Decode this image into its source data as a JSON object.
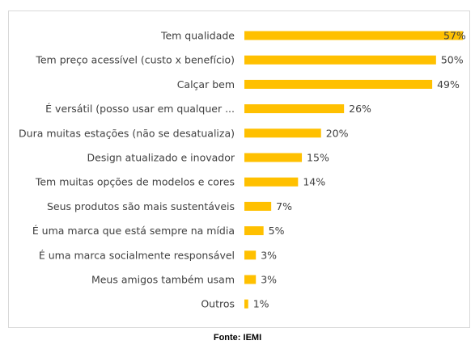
{
  "chart_data": {
    "type": "bar",
    "orientation": "horizontal",
    "categories": [
      "Tem qualidade",
      "Tem preço acessível (custo x benefício)",
      "Calçar bem",
      "É versátil (posso usar em qualquer ...",
      "Dura muitas estações (não se desatualiza)",
      "Design atualizado e inovador",
      "Tem muitas opções de modelos e cores",
      "Seus produtos são mais sustentáveis",
      "É uma marca que está sempre na mídia",
      "É uma marca socialmente responsável",
      "Meus amigos também usam",
      "Outros"
    ],
    "values": [
      57,
      50,
      49,
      26,
      20,
      15,
      14,
      7,
      5,
      3,
      3,
      1
    ],
    "value_labels": [
      "57%",
      "50%",
      "49%",
      "26%",
      "20%",
      "15%",
      "14%",
      "7%",
      "5%",
      "3%",
      "3%",
      "1%"
    ],
    "xlim": [
      0,
      57
    ],
    "grid": false,
    "bar_color": "#FFC000"
  },
  "source": "Fonte: IEMI"
}
